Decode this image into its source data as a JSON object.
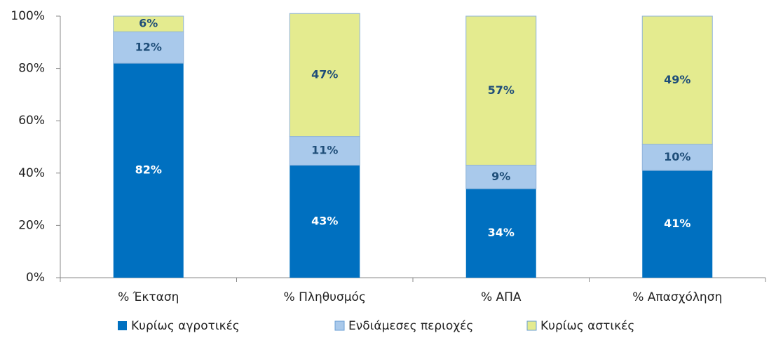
{
  "chart_data": {
    "type": "stacked_bar",
    "categories": [
      "% Έκταση",
      "% Πληθυσμός",
      "% ΑΠΑ",
      "% Απασχόληση"
    ],
    "series": [
      {
        "name": "Κυρίως αγροτικές",
        "color": "#0070c0",
        "values": [
          82,
          43,
          34,
          41
        ],
        "value_labels": [
          "82%",
          "43%",
          "34%",
          "41%"
        ]
      },
      {
        "name": "Ενδιάμεσες περιοχές",
        "color": "#a9c9eb",
        "values": [
          12,
          11,
          9,
          10
        ],
        "value_labels": [
          "12%",
          "11%",
          "9%",
          "10%"
        ]
      },
      {
        "name": "Κυρίως αστικές",
        "color": "#e4eb8f",
        "values": [
          6,
          47,
          57,
          49
        ],
        "value_labels": [
          "6%",
          "47%",
          "57%",
          "49%"
        ]
      }
    ],
    "ylim": [
      0,
      100
    ],
    "yticks": [
      {
        "value": 0,
        "label": "0%"
      },
      {
        "value": 20,
        "label": "20%"
      },
      {
        "value": 40,
        "label": "40%"
      },
      {
        "value": 60,
        "label": "60%"
      },
      {
        "value": 80,
        "label": "80%"
      },
      {
        "value": 100,
        "label": "100%"
      }
    ],
    "legend": "bottom"
  }
}
